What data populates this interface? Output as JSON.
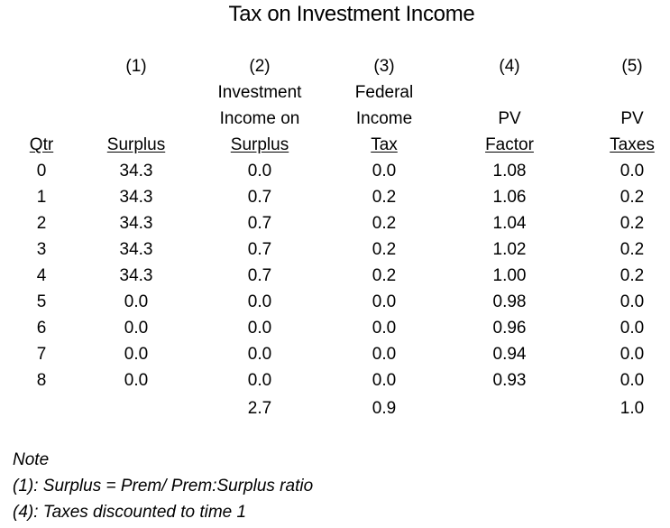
{
  "title": "Tax on Investment Income",
  "columns": [
    {
      "key": "qtr",
      "number": "",
      "header": [
        "",
        "",
        "Qtr"
      ]
    },
    {
      "key": "c1",
      "number": "(1)",
      "header": [
        "",
        "",
        "Surplus"
      ]
    },
    {
      "key": "c2",
      "number": "(2)",
      "header": [
        "Investment",
        "Income on",
        "Surplus"
      ]
    },
    {
      "key": "c3",
      "number": "(3)",
      "header": [
        "Federal",
        "Income",
        "Tax"
      ]
    },
    {
      "key": "c4",
      "number": "(4)",
      "header": [
        "",
        "PV",
        "Factor"
      ]
    },
    {
      "key": "c5",
      "number": "(5)",
      "header": [
        "",
        "PV",
        "Taxes"
      ]
    }
  ],
  "rows": [
    [
      "0",
      "34.3",
      "0.0",
      "0.0",
      "1.08",
      "0.0"
    ],
    [
      "1",
      "34.3",
      "0.7",
      "0.2",
      "1.06",
      "0.2"
    ],
    [
      "2",
      "34.3",
      "0.7",
      "0.2",
      "1.04",
      "0.2"
    ],
    [
      "3",
      "34.3",
      "0.7",
      "0.2",
      "1.02",
      "0.2"
    ],
    [
      "4",
      "34.3",
      "0.7",
      "0.2",
      "1.00",
      "0.2"
    ],
    [
      "5",
      "0.0",
      "0.0",
      "0.0",
      "0.98",
      "0.0"
    ],
    [
      "6",
      "0.0",
      "0.0",
      "0.0",
      "0.96",
      "0.0"
    ],
    [
      "7",
      "0.0",
      "0.0",
      "0.0",
      "0.94",
      "0.0"
    ],
    [
      "8",
      "0.0",
      "0.0",
      "0.0",
      "0.93",
      "0.0"
    ]
  ],
  "totals": [
    "",
    "",
    "2.7",
    "0.9",
    "",
    "1.0"
  ],
  "notes": [
    "Note",
    "(1): Surplus = Prem/ Prem:Surplus ratio",
    "(4): Taxes discounted to time 1"
  ]
}
